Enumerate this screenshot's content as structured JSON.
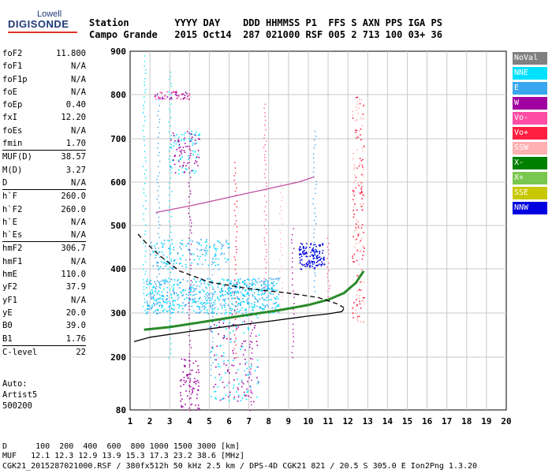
{
  "logo": {
    "top": "Lowell",
    "main": "DIGISONDE"
  },
  "header": {
    "row1": "Station        YYYY DAY    DDD HHMMSS P1  FFS S AXN PPS IGA PS",
    "row2": "Campo Grande   2015 Oct14  287 021000 RSF 005 2 713 100 03+ 36"
  },
  "params": [
    {
      "label": "foF2",
      "value": "11.800"
    },
    {
      "label": "foF1",
      "value": "N/A"
    },
    {
      "label": "foF1p",
      "value": "N/A"
    },
    {
      "label": "foE",
      "value": "N/A"
    },
    {
      "label": "foEp",
      "value": "0.40"
    },
    {
      "label": "fxI",
      "value": "12.20"
    },
    {
      "label": "foEs",
      "value": "N/A"
    },
    {
      "label": "fmin",
      "value": "1.70"
    },
    {
      "sep": true
    },
    {
      "label": "MUF(D)",
      "value": "38.57"
    },
    {
      "label": "M(D)",
      "value": "3.27"
    },
    {
      "label": "D",
      "value": "N/A"
    },
    {
      "sep": true
    },
    {
      "label": "h`F",
      "value": "260.0"
    },
    {
      "label": "h`F2",
      "value": "260.0"
    },
    {
      "label": "h`E",
      "value": "N/A"
    },
    {
      "label": "h`Es",
      "value": "N/A"
    },
    {
      "sep": true
    },
    {
      "label": "hmF2",
      "value": "306.7"
    },
    {
      "label": "hmF1",
      "value": "N/A"
    },
    {
      "label": "hmE",
      "value": "110.0"
    },
    {
      "label": "yF2",
      "value": "37.9"
    },
    {
      "label": "yF1",
      "value": "N/A"
    },
    {
      "label": "yE",
      "value": "20.0"
    },
    {
      "label": "B0",
      "value": "39.0"
    },
    {
      "label": "B1",
      "value": "1.76"
    },
    {
      "sep": true
    },
    {
      "label": "C-level",
      "value": "22"
    }
  ],
  "auto": {
    "line1": "Auto:",
    "line2": "Artist5",
    "line3": "500200"
  },
  "legend": [
    {
      "label": "NoVal",
      "color": "#808080"
    },
    {
      "label": "NNE",
      "color": "#00e0ff"
    },
    {
      "label": "E",
      "color": "#3aa6f0"
    },
    {
      "label": "W",
      "color": "#a000a0"
    },
    {
      "label": "Vo-",
      "color": "#ff4da6"
    },
    {
      "label": "Vo+",
      "color": "#ff1f40"
    },
    {
      "label": "SSW",
      "color": "#ffb0b0"
    },
    {
      "label": "X-",
      "color": "#008000"
    },
    {
      "label": "X+",
      "color": "#7ac74f"
    },
    {
      "label": "SSE",
      "color": "#c8c800"
    },
    {
      "label": "NNW",
      "color": "#0000e0"
    }
  ],
  "bottom": {
    "d_line": "D      100  200  400  600  800 1000 1500 3000 [km]",
    "muf_line": "MUF   12.1 12.3 12.9 13.9 15.3 17.3 23.2 38.6 [MHz]",
    "file_line": "CGK21_2015287021000.RSF / 380fx512h 50 kHz 2.5 km / DPS-4D CGK21 821 / 20.5 S 305.0 E Ion2Png 1.3.20"
  },
  "chart_data": {
    "type": "scatter",
    "xlim": [
      1,
      20
    ],
    "ylim": [
      80,
      900
    ],
    "x_ticks": [
      1,
      2,
      3,
      4,
      5,
      6,
      7,
      8,
      9,
      10,
      11,
      12,
      13,
      14,
      15,
      16,
      17,
      18,
      19,
      20
    ],
    "y_ticks": [
      80,
      200,
      300,
      400,
      500,
      600,
      700,
      800,
      900
    ],
    "grid": true,
    "traces": [
      {
        "name": "o-trace",
        "color": "#2a8a2a",
        "points": [
          [
            1.7,
            262
          ],
          [
            3,
            268
          ],
          [
            5,
            282
          ],
          [
            7,
            296
          ],
          [
            8.5,
            306
          ],
          [
            10,
            318
          ],
          [
            11,
            330
          ],
          [
            11.8,
            345
          ],
          [
            12.4,
            368
          ],
          [
            12.8,
            395
          ]
        ]
      },
      {
        "name": "profile",
        "color": "#000000",
        "style": "solid",
        "points": [
          [
            1.2,
            235
          ],
          [
            2,
            245
          ],
          [
            4,
            258
          ],
          [
            6,
            270
          ],
          [
            8,
            281
          ],
          [
            10,
            293
          ],
          [
            11,
            298
          ],
          [
            11.7,
            303
          ],
          [
            11.8,
            310
          ]
        ]
      },
      {
        "name": "topside",
        "color": "#000000",
        "style": "dashed",
        "points": [
          [
            1.4,
            480
          ],
          [
            1.8,
            460
          ],
          [
            2.5,
            430
          ],
          [
            3.5,
            395
          ],
          [
            5,
            370
          ],
          [
            7,
            355
          ],
          [
            9,
            345
          ],
          [
            10.5,
            335
          ],
          [
            11.5,
            320
          ],
          [
            11.8,
            312
          ]
        ]
      },
      {
        "name": "echo-600",
        "color": "#c050a0",
        "points": [
          [
            2.3,
            530
          ],
          [
            4,
            545
          ],
          [
            6,
            565
          ],
          [
            8,
            585
          ],
          [
            9.5,
            600
          ],
          [
            10.3,
            612
          ]
        ]
      }
    ]
  }
}
